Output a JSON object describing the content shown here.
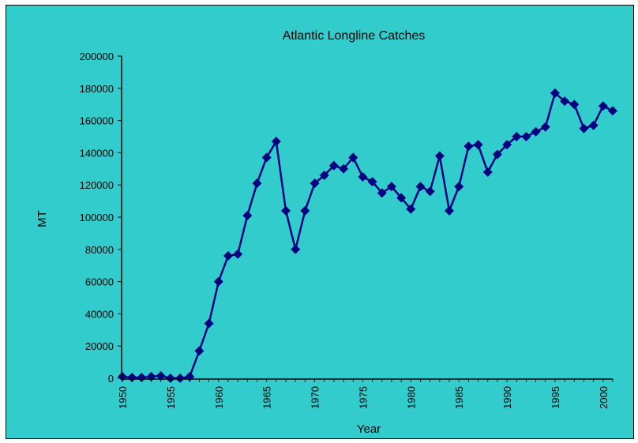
{
  "chart_data": {
    "type": "line",
    "title": "Atlantic Longline Catches",
    "xlabel": "Year",
    "ylabel": "MT",
    "ylim": [
      0,
      200000
    ],
    "yticks": [
      0,
      20000,
      40000,
      60000,
      80000,
      100000,
      120000,
      140000,
      160000,
      180000,
      200000
    ],
    "xlim": [
      1950,
      2001
    ],
    "xticks": [
      1950,
      1955,
      1960,
      1965,
      1970,
      1975,
      1980,
      1985,
      1990,
      1995,
      2000
    ],
    "grid": false,
    "legend": "none",
    "series_color": "#000080",
    "background_color": "#33cccc",
    "series": [
      {
        "x": [
          1950,
          1951,
          1952,
          1953,
          1954,
          1955,
          1956,
          1957,
          1958,
          1959,
          1960,
          1961,
          1962,
          1963,
          1964,
          1965,
          1966,
          1967,
          1968,
          1969,
          1970,
          1971,
          1972,
          1973,
          1974,
          1975,
          1976,
          1977,
          1978,
          1979,
          1980,
          1981,
          1982,
          1983,
          1984,
          1985,
          1986,
          1987,
          1988,
          1989,
          1990,
          1991,
          1992,
          1993,
          1994,
          1995,
          1996,
          1997,
          1998,
          1999,
          2000,
          2001
        ],
        "values": [
          1000,
          500,
          500,
          1000,
          1500,
          0,
          0,
          1000,
          17000,
          34000,
          60000,
          76000,
          77000,
          101000,
          121000,
          137000,
          147000,
          104000,
          80000,
          104000,
          121000,
          126000,
          132000,
          130000,
          137000,
          125000,
          122000,
          115000,
          119000,
          112000,
          105000,
          119000,
          116000,
          138000,
          104000,
          119000,
          144000,
          145000,
          128000,
          139000,
          145000,
          150000,
          150000,
          153000,
          156000,
          177000,
          172000,
          170000,
          155000,
          157000,
          169000,
          166000
        ]
      }
    ]
  }
}
